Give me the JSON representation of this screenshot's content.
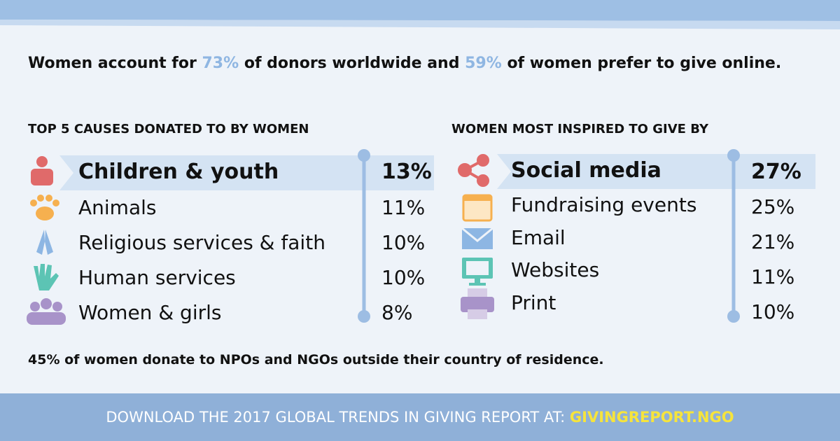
{
  "headline": {
    "parts": [
      "Women account for ",
      "73%",
      " of donors worldwide and ",
      "59%",
      " of women prefer to give online."
    ]
  },
  "causes": {
    "title": "TOP 5 CAUSES DONATED TO BY WOMEN",
    "items": [
      {
        "label": "Children & youth",
        "value": "13%"
      },
      {
        "label": "Animals",
        "value": "11%"
      },
      {
        "label": "Religious services & faith",
        "value": "10%"
      },
      {
        "label": "Human services",
        "value": "10%"
      },
      {
        "label": "Women & girls",
        "value": "8%"
      }
    ]
  },
  "inspired": {
    "title": "WOMEN MOST INSPIRED TO GIVE BY",
    "items": [
      {
        "label": "Social media",
        "value": "27%"
      },
      {
        "label": "Fundraising events",
        "value": "25%"
      },
      {
        "label": "Email",
        "value": "21%"
      },
      {
        "label": "Websites",
        "value": "11%"
      },
      {
        "label": "Print",
        "value": "10%"
      }
    ]
  },
  "note": "45% of women donate to NPOs and NGOs outside their country of residence.",
  "footer": {
    "text": "DOWNLOAD THE 2017 GLOBAL TRENDS IN GIVING REPORT AT: ",
    "link": "GIVINGREPORT.NGO"
  }
}
